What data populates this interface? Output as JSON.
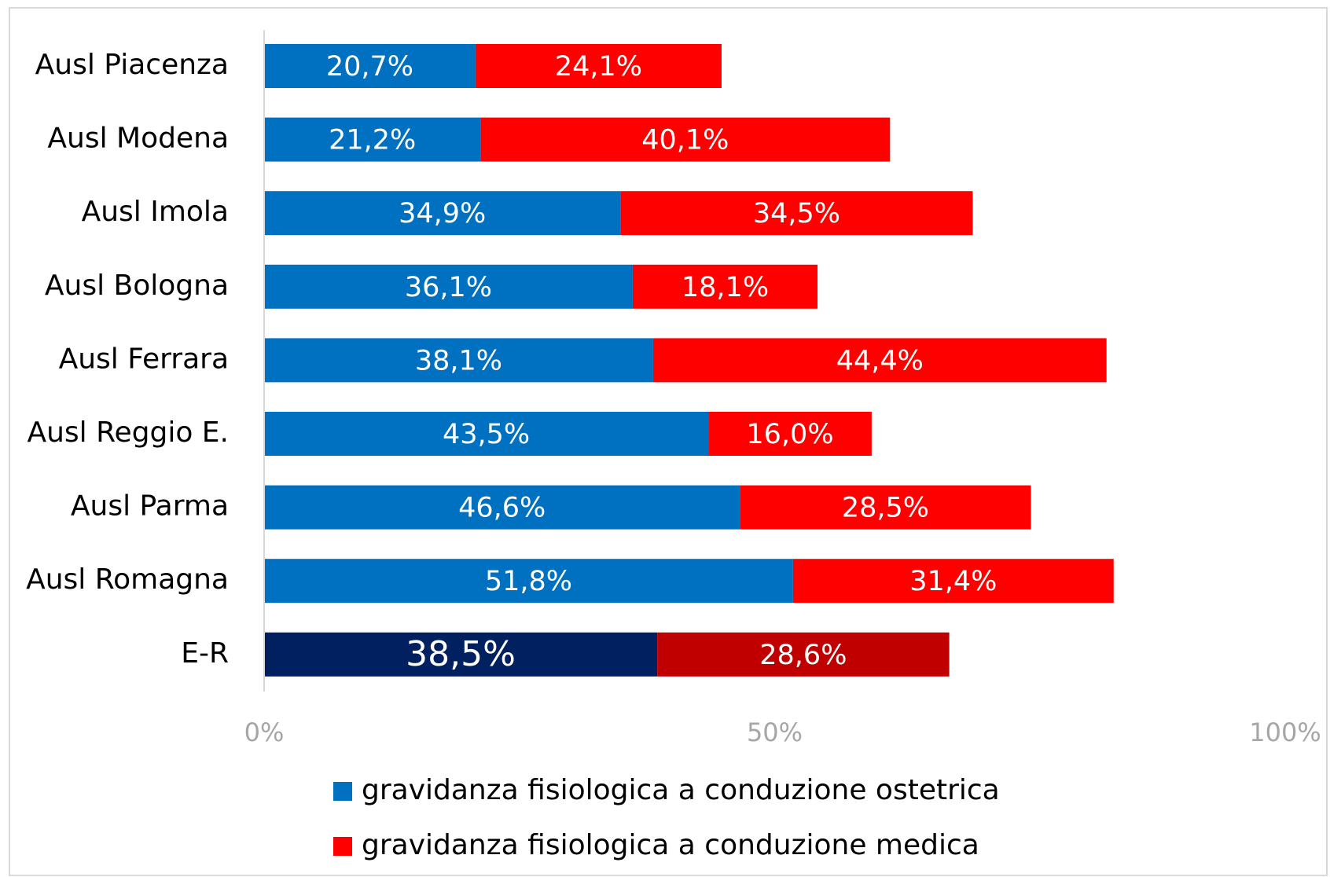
{
  "chart_data": {
    "type": "stacked-bar-horizontal",
    "categories": [
      "Ausl Piacenza",
      "Ausl Modena",
      "Ausl Imola",
      "Ausl Bologna",
      "Ausl Ferrara",
      "Ausl Reggio E.",
      "Ausl Parma",
      "Ausl Romagna",
      "E-R"
    ],
    "series": [
      {
        "name": "gravidanza fisiologica a conduzione ostetrica",
        "color": "#0070c0",
        "colors": [
          "#0070c0",
          "#0070c0",
          "#0070c0",
          "#0070c0",
          "#0070c0",
          "#0070c0",
          "#0070c0",
          "#0070c0",
          "#002060"
        ],
        "values": [
          20.7,
          21.2,
          34.9,
          36.1,
          38.1,
          43.5,
          46.6,
          51.8,
          38.5
        ],
        "value_labels": [
          "20,7%",
          "21,2%",
          "34,9%",
          "36,1%",
          "38,1%",
          "43,5%",
          "46,6%",
          "51,8%",
          "38,5%"
        ]
      },
      {
        "name": "gravidanza fisiologica a conduzione medica",
        "color": "#ff0000",
        "colors": [
          "#ff0000",
          "#ff0000",
          "#ff0000",
          "#ff0000",
          "#ff0000",
          "#ff0000",
          "#ff0000",
          "#ff0000",
          "#c00000"
        ],
        "values": [
          24.1,
          40.1,
          34.5,
          18.1,
          44.4,
          16.0,
          28.5,
          31.4,
          28.6
        ],
        "value_labels": [
          "24,1%",
          "40,1%",
          "34,5%",
          "18,1%",
          "44,4%",
          "16,0%",
          "28,5%",
          "31,4%",
          "28,6%"
        ]
      }
    ],
    "xlim": [
      0,
      100
    ],
    "xticks": [
      {
        "value": 0,
        "label": "0%"
      },
      {
        "value": 50,
        "label": "50%"
      },
      {
        "value": 100,
        "label": "100%"
      }
    ],
    "legend": "bottom"
  }
}
